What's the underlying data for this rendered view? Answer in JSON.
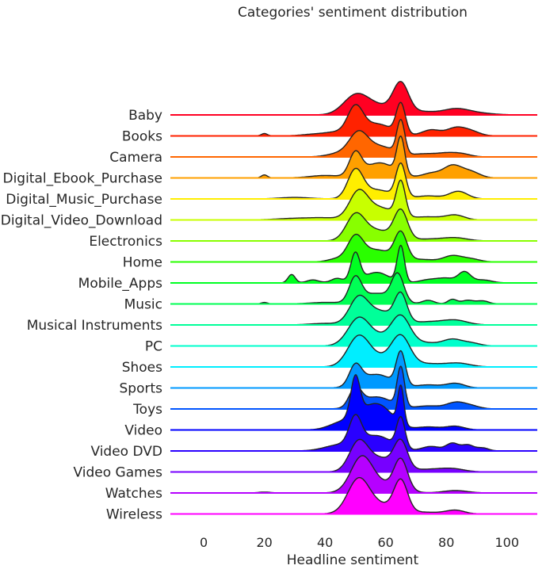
{
  "chart_data": {
    "type": "ridgeline",
    "title": "Categories' sentiment distribution",
    "xlabel": "Headline sentiment",
    "xlim": [
      -11,
      110
    ],
    "xticks": [
      0,
      20,
      40,
      60,
      80,
      100
    ],
    "grid": false,
    "legend": "none",
    "series": [
      {
        "name": "Baby",
        "color": "#ff0022",
        "peaks": [
          [
            50,
            4,
            0.55
          ],
          [
            65,
            2.5,
            0.95
          ],
          [
            57,
            6,
            0.3
          ],
          [
            83,
            4,
            0.15
          ],
          [
            88,
            6,
            0.08
          ],
          [
            72,
            5,
            0.1
          ]
        ]
      },
      {
        "name": "Books",
        "color": "#ff2200",
        "peaks": [
          [
            50,
            2.5,
            0.85
          ],
          [
            65,
            1.5,
            1.0
          ],
          [
            57,
            5,
            0.4
          ],
          [
            20,
            1,
            0.08
          ],
          [
            75,
            3,
            0.2
          ],
          [
            83,
            3,
            0.25
          ],
          [
            88,
            3,
            0.15
          ],
          [
            36,
            4,
            0.05
          ],
          [
            44,
            4,
            0.12
          ]
        ]
      },
      {
        "name": "Camera",
        "color": "#ff6600",
        "peaks": [
          [
            51,
            3,
            0.7
          ],
          [
            65,
            1.3,
            1.1
          ],
          [
            58,
            5,
            0.35
          ],
          [
            45,
            4,
            0.12
          ],
          [
            80,
            3,
            0.1
          ],
          [
            85,
            3,
            0.1
          ],
          [
            73,
            4,
            0.1
          ]
        ]
      },
      {
        "name": "Digital_Ebook_Purchase",
        "color": "#ffa000",
        "peaks": [
          [
            50,
            2,
            0.75
          ],
          [
            65,
            1.3,
            1.2
          ],
          [
            58,
            5,
            0.5
          ],
          [
            82,
            3,
            0.4
          ],
          [
            88,
            3,
            0.2
          ],
          [
            20,
            1,
            0.1
          ],
          [
            75,
            3,
            0.15
          ],
          [
            40,
            5,
            0.08
          ]
        ]
      },
      {
        "name": "Digital_Music_Purchase",
        "color": "#ffee00",
        "peaks": [
          [
            50,
            2.5,
            0.9
          ],
          [
            65,
            1.6,
            1.1
          ],
          [
            57,
            5,
            0.3
          ],
          [
            84,
            3,
            0.25
          ],
          [
            74,
            4,
            0.1
          ],
          [
            30,
            5,
            0.05
          ]
        ]
      },
      {
        "name": "Digital_Video_Download",
        "color": "#c8ff00",
        "peaks": [
          [
            51,
            3,
            0.85
          ],
          [
            65,
            1.5,
            1.15
          ],
          [
            58,
            5,
            0.4
          ],
          [
            83,
            3,
            0.15
          ],
          [
            74,
            5,
            0.1
          ],
          [
            30,
            6,
            0.05
          ],
          [
            40,
            5,
            0.06
          ]
        ]
      },
      {
        "name": "Electronics",
        "color": "#88ff00",
        "peaks": [
          [
            50,
            3,
            0.8
          ],
          [
            65,
            2.2,
            0.95
          ],
          [
            57,
            5,
            0.35
          ],
          [
            83,
            4,
            0.1
          ],
          [
            74,
            5,
            0.06
          ]
        ]
      },
      {
        "name": "Home",
        "color": "#2aff00",
        "peaks": [
          [
            50,
            2.5,
            0.75
          ],
          [
            65,
            2,
            0.9
          ],
          [
            57,
            5,
            0.4
          ],
          [
            82,
            3,
            0.2
          ],
          [
            88,
            3,
            0.1
          ],
          [
            72,
            4,
            0.08
          ],
          [
            44,
            3,
            0.1
          ]
        ]
      },
      {
        "name": "Mobile_Apps",
        "color": "#00ff22",
        "peaks": [
          [
            50,
            1.5,
            0.95
          ],
          [
            65,
            1.2,
            1.2
          ],
          [
            57,
            4,
            0.35
          ],
          [
            29,
            1.2,
            0.28
          ],
          [
            36,
            2,
            0.1
          ],
          [
            44,
            2,
            0.15
          ],
          [
            80,
            3,
            0.15
          ],
          [
            86,
            2,
            0.35
          ],
          [
            92,
            3,
            0.1
          ],
          [
            74,
            3,
            0.1
          ]
        ]
      },
      {
        "name": "Music",
        "color": "#00ff55",
        "peaks": [
          [
            50,
            2,
            0.8
          ],
          [
            64,
            2,
            0.9
          ],
          [
            57,
            5,
            0.35
          ],
          [
            20,
            1,
            0.05
          ],
          [
            74,
            2,
            0.12
          ],
          [
            82,
            1.5,
            0.15
          ],
          [
            87,
            2,
            0.12
          ],
          [
            92,
            2,
            0.1
          ],
          [
            40,
            5,
            0.05
          ]
        ]
      },
      {
        "name": "Musical Instruments",
        "color": "#00ff99",
        "peaks": [
          [
            51,
            3,
            0.8
          ],
          [
            65,
            2,
            0.9
          ],
          [
            58,
            5,
            0.45
          ],
          [
            83,
            4,
            0.15
          ],
          [
            74,
            5,
            0.1
          ],
          [
            40,
            5,
            0.05
          ]
        ]
      },
      {
        "name": "PC",
        "color": "#00ffcc",
        "peaks": [
          [
            51,
            3.5,
            0.8
          ],
          [
            65,
            3,
            0.85
          ],
          [
            58,
            6,
            0.3
          ],
          [
            82,
            3,
            0.2
          ],
          [
            88,
            3,
            0.1
          ],
          [
            73,
            5,
            0.1
          ]
        ]
      },
      {
        "name": "Shoes",
        "color": "#00eeff",
        "peaks": [
          [
            51,
            3.5,
            0.9
          ],
          [
            65,
            3,
            0.9
          ],
          [
            58,
            6,
            0.3
          ],
          [
            84,
            4,
            0.12
          ],
          [
            74,
            5,
            0.1
          ]
        ]
      },
      {
        "name": "Sports",
        "color": "#0099ff",
        "peaks": [
          [
            50,
            2,
            0.65
          ],
          [
            65,
            1.5,
            1.1
          ],
          [
            57,
            5,
            0.45
          ],
          [
            83,
            3,
            0.15
          ],
          [
            74,
            4,
            0.1
          ]
        ]
      },
      {
        "name": "Toys",
        "color": "#0055ff",
        "peaks": [
          [
            50,
            2,
            0.6
          ],
          [
            65,
            1.2,
            1.3
          ],
          [
            57,
            5,
            0.4
          ],
          [
            83,
            3,
            0.2
          ],
          [
            88,
            3,
            0.1
          ],
          [
            74,
            4,
            0.1
          ]
        ]
      },
      {
        "name": "Video",
        "color": "#0000ff",
        "peaks": [
          [
            50,
            1.5,
            1.3
          ],
          [
            65,
            1,
            1.25
          ],
          [
            55,
            5,
            0.7
          ],
          [
            60,
            4,
            0.3
          ],
          [
            45,
            4,
            0.2
          ],
          [
            83,
            3,
            0.12
          ],
          [
            74,
            4,
            0.1
          ]
        ]
      },
      {
        "name": "Video DVD",
        "color": "#2a00ff",
        "peaks": [
          [
            50,
            2,
            0.9
          ],
          [
            65,
            1.4,
            1.0
          ],
          [
            57,
            5,
            0.5
          ],
          [
            45,
            5,
            0.2
          ],
          [
            82,
            2,
            0.25
          ],
          [
            87,
            2,
            0.2
          ],
          [
            92,
            2,
            0.1
          ],
          [
            75,
            3,
            0.15
          ]
        ]
      },
      {
        "name": "Video Games",
        "color": "#7700ff",
        "peaks": [
          [
            51,
            3,
            0.9
          ],
          [
            65,
            2.2,
            0.9
          ],
          [
            58,
            5,
            0.45
          ],
          [
            82,
            4,
            0.1
          ],
          [
            74,
            5,
            0.08
          ]
        ]
      },
      {
        "name": "Watches",
        "color": "#b600ff",
        "peaks": [
          [
            52,
            3.5,
            1.05
          ],
          [
            65,
            2.2,
            1.0
          ],
          [
            58,
            6,
            0.3
          ],
          [
            83,
            4,
            0.08
          ],
          [
            20,
            2,
            0.03
          ]
        ]
      },
      {
        "name": "Wireless",
        "color": "#ff00ff",
        "peaks": [
          [
            51,
            3.5,
            1.05
          ],
          [
            65,
            2.2,
            1.0
          ],
          [
            58,
            6,
            0.3
          ],
          [
            83,
            3,
            0.12
          ],
          [
            74,
            5,
            0.05
          ]
        ]
      }
    ]
  }
}
